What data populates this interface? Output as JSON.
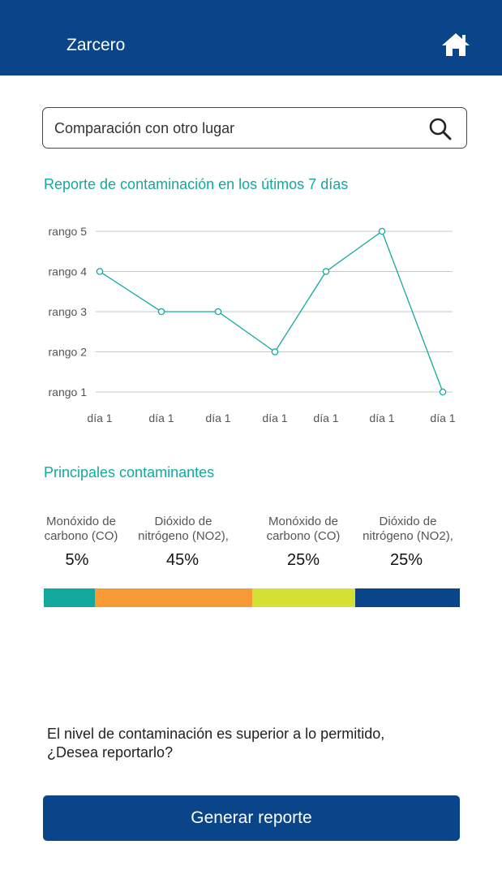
{
  "header": {
    "title": "Zarcero",
    "home_icon": "home-icon"
  },
  "search": {
    "placeholder": "Comparación con otro lugar",
    "value": "",
    "icon": "search-icon"
  },
  "report": {
    "title": "Reporte de contaminación en los útimos 7 días"
  },
  "chart_data": {
    "type": "line",
    "title": "",
    "xlabel": "",
    "ylabel": "",
    "categories": [
      "día 1",
      "día 1",
      "día 1",
      "día 1",
      "día 1",
      "día 1",
      "día 1"
    ],
    "y_tick_labels": [
      "rango 1",
      "rango 2",
      "rango 3",
      "rango 4",
      "rango 5"
    ],
    "ylim": [
      1,
      5
    ],
    "grid": true,
    "series": [
      {
        "values": [
          4,
          3,
          3,
          2,
          4,
          5,
          1
        ],
        "color": "#13a89e"
      }
    ]
  },
  "pollutants": {
    "title": "Principales contaminantes",
    "items": [
      {
        "label_line1": "Monóxido de",
        "label_line2": "carbono (CO)",
        "value": "5%",
        "fraction": 0.05,
        "color": "#13a89e"
      },
      {
        "label_line1": "Dióxido de",
        "label_line2": "nitrógeno (NO2),",
        "value": "45%",
        "fraction": 0.45,
        "color": "#f59a35"
      },
      {
        "label_line1": "Monóxido de",
        "label_line2": "carbono (CO)",
        "value": "25%",
        "fraction": 0.25,
        "color": "#d5e034"
      },
      {
        "label_line1": "Dióxido de",
        "label_line2": "nitrógeno (NO2),",
        "value": "25%",
        "fraction": 0.25,
        "color": "#0b4589"
      }
    ]
  },
  "alert": {
    "line1": "El nivel de contaminación es superior a lo permitido,",
    "line2": "¿Desea reportarlo?"
  },
  "action": {
    "label": "Generar reporte"
  }
}
